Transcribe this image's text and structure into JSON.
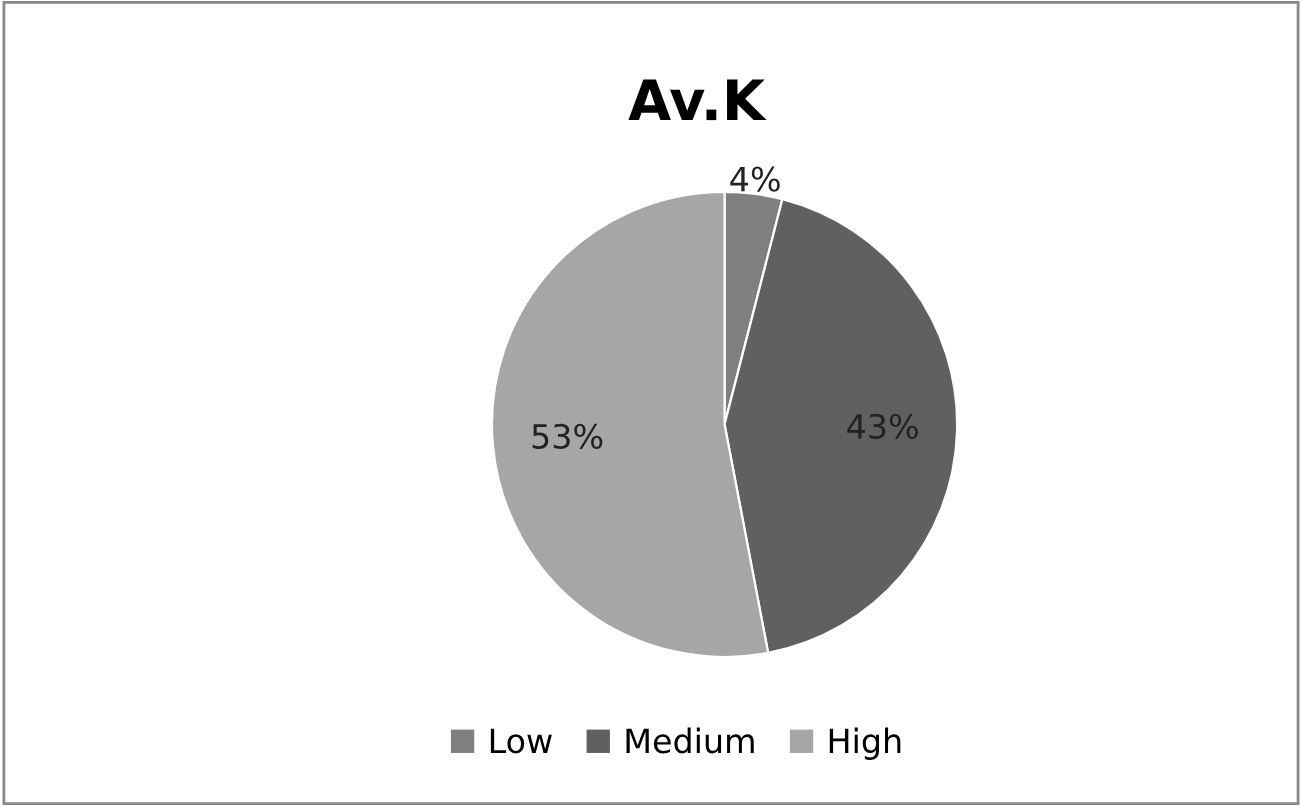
{
  "chart_data": {
    "type": "pie",
    "title": "Av.K",
    "categories": [
      "Low",
      "Medium",
      "High"
    ],
    "values": [
      4,
      43,
      53
    ],
    "colors": [
      "#7f7f7f",
      "#606060",
      "#a6a6a6"
    ],
    "value_labels": [
      "4%",
      "43%",
      "53%"
    ],
    "legend": "bottom"
  }
}
